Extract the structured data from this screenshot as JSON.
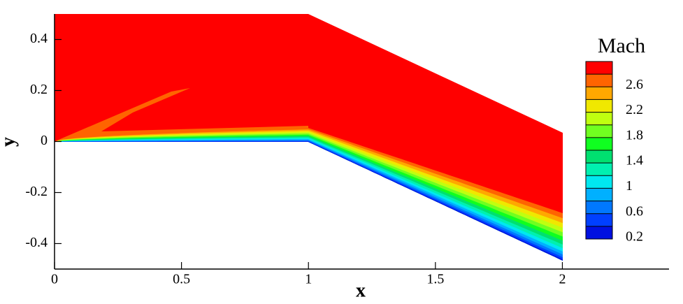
{
  "chart_data": {
    "type": "contour",
    "xlabel": "x",
    "ylabel": "y",
    "xlim": [
      0,
      2.42
    ],
    "ylim": [
      -0.5,
      0.5
    ],
    "xticks": [
      0,
      0.5,
      1,
      1.5,
      2
    ],
    "yticks": [
      -0.4,
      -0.2,
      0,
      0.2,
      0.4
    ],
    "colorbar": {
      "title": "Mach",
      "levels": [
        0.2,
        0.4,
        0.6,
        0.8,
        1,
        1.2,
        1.4,
        1.6,
        1.8,
        2,
        2.2,
        2.4,
        2.6,
        2.8,
        3
      ],
      "ticks": [
        0.2,
        0.6,
        1,
        1.4,
        1.8,
        2.2,
        2.6
      ],
      "colors": [
        "#0010e0",
        "#0040ff",
        "#0078ff",
        "#00b0ff",
        "#00e8f0",
        "#00f0b0",
        "#00e070",
        "#10ff20",
        "#70ff20",
        "#c0ff10",
        "#f0e800",
        "#ffa800",
        "#ff6400",
        "#ff0000"
      ]
    }
  }
}
